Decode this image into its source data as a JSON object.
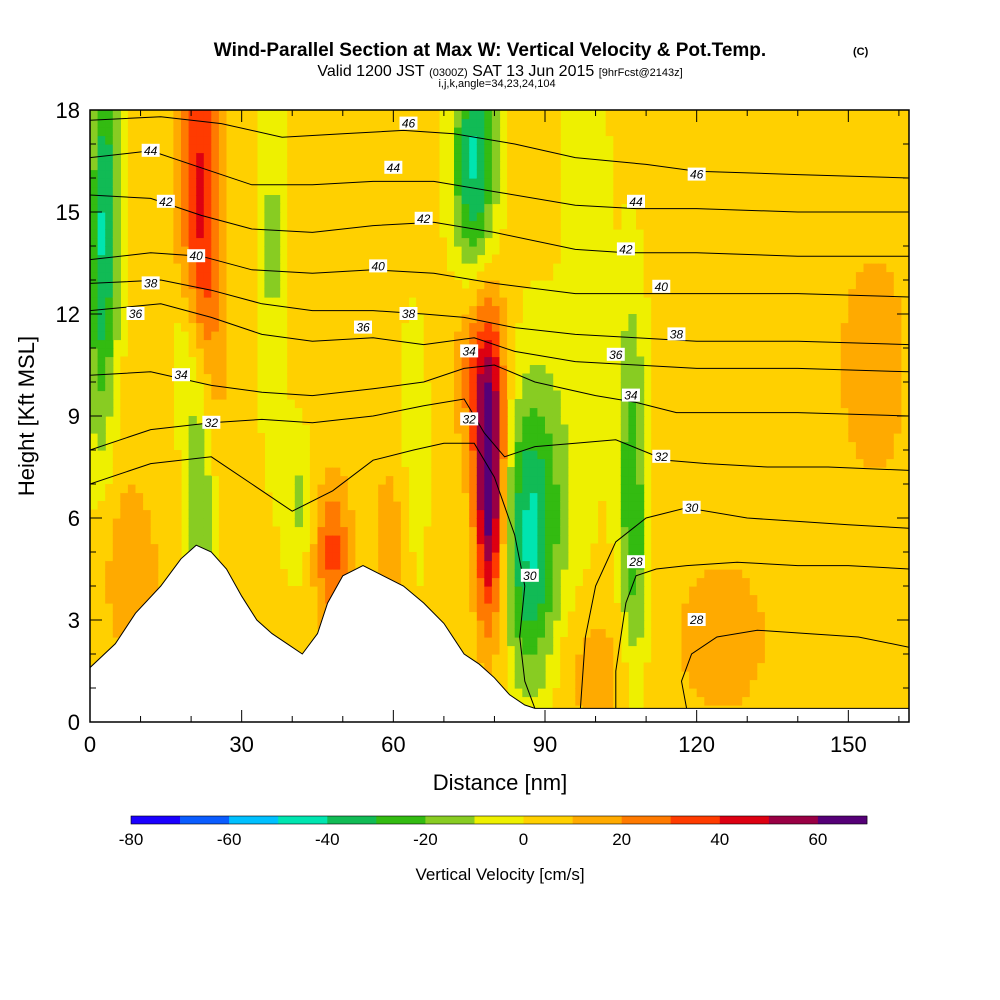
{
  "chart_data": {
    "type": "heatmap",
    "title": "Wind-Parallel Section at Max W: Vertical Velocity & Pot.Temp.",
    "title_mark": "(C)",
    "subtitle_parts": [
      "Valid 1200 JST",
      "(0300Z)",
      "SAT 13 Jun 2015",
      "[9hrFcst@2143z]"
    ],
    "subtitle2": "i,j,k,angle=34,23,24,104",
    "xlabel": "Distance [nm]",
    "ylabel": "Height [Kft MSL]",
    "xlim": [
      0,
      162
    ],
    "ylim": [
      0,
      18
    ],
    "x_ticks": [
      0,
      30,
      60,
      90,
      120,
      150
    ],
    "y_ticks": [
      0,
      3,
      6,
      9,
      12,
      15,
      18
    ],
    "colorbar": {
      "label": "Vertical Velocity [cm/s]",
      "range": [
        -80,
        70
      ],
      "ticks": [
        -80,
        -60,
        -40,
        -20,
        0,
        20,
        40,
        60
      ],
      "colors": [
        "#1a00ff",
        "#0a5cff",
        "#00c0ff",
        "#00e5b0",
        "#11bb55",
        "#33bb11",
        "#88cc22",
        "#eef000",
        "#ffd000",
        "#ffaa00",
        "#ff7a00",
        "#ff3b00",
        "#dd0011",
        "#990044",
        "#550077"
      ]
    },
    "terrain": [
      [
        0,
        1.6
      ],
      [
        5,
        2.3
      ],
      [
        9,
        3.2
      ],
      [
        14,
        4.0
      ],
      [
        18,
        4.8
      ],
      [
        21,
        5.2
      ],
      [
        24,
        5.0
      ],
      [
        27,
        4.5
      ],
      [
        30,
        3.7
      ],
      [
        33,
        3.0
      ],
      [
        36,
        2.6
      ],
      [
        39,
        2.3
      ],
      [
        42,
        2.0
      ],
      [
        45,
        2.6
      ],
      [
        47,
        3.5
      ],
      [
        50,
        4.3
      ],
      [
        54,
        4.6
      ],
      [
        58,
        4.3
      ],
      [
        62,
        4.0
      ],
      [
        66,
        3.5
      ],
      [
        70,
        2.9
      ],
      [
        74,
        2.0
      ],
      [
        77,
        1.7
      ],
      [
        80,
        1.3
      ],
      [
        83,
        0.8
      ],
      [
        86,
        0.5
      ],
      [
        88,
        0.4
      ],
      [
        162,
        0.4
      ]
    ],
    "velocity_features": [
      {
        "x": 22,
        "y": 14.5,
        "sx": 3.0,
        "sy": 5.0,
        "w": 42
      },
      {
        "x": 79,
        "y": 7.0,
        "sx": 2.0,
        "sy": 2.8,
        "w": 70
      },
      {
        "x": 77,
        "y": 10.5,
        "sx": 3.5,
        "sy": 2.0,
        "w": 25
      },
      {
        "x": 48,
        "y": 5.0,
        "sx": 2.5,
        "sy": 1.5,
        "w": 30
      },
      {
        "x": 60,
        "y": 5.5,
        "sx": 3.0,
        "sy": 2.0,
        "w": 12
      },
      {
        "x": 8,
        "y": 4.5,
        "sx": 4.0,
        "sy": 2.0,
        "w": 15
      },
      {
        "x": 155,
        "y": 10.5,
        "sx": 6.0,
        "sy": 3.0,
        "w": 12
      },
      {
        "x": 125,
        "y": 2.5,
        "sx": 8.0,
        "sy": 2.0,
        "w": 12
      },
      {
        "x": 100,
        "y": 1.5,
        "sx": 5.0,
        "sy": 1.5,
        "w": 12
      },
      {
        "x": 3,
        "y": 15.5,
        "sx": 2.0,
        "sy": 3.0,
        "w": -38
      },
      {
        "x": 22,
        "y": 7.0,
        "sx": 2.0,
        "sy": 3.5,
        "w": -32
      },
      {
        "x": 19,
        "y": 10.5,
        "sx": 2.0,
        "sy": 2.0,
        "w": -22
      },
      {
        "x": 76,
        "y": 16.5,
        "sx": 3.0,
        "sy": 2.5,
        "w": -45
      },
      {
        "x": 87,
        "y": 5.0,
        "sx": 3.5,
        "sy": 3.0,
        "w": -35
      },
      {
        "x": 90,
        "y": 7.0,
        "sx": 6.0,
        "sy": 3.0,
        "w": -15
      },
      {
        "x": 107,
        "y": 8.0,
        "sx": 2.0,
        "sy": 3.5,
        "w": -25
      },
      {
        "x": 108,
        "y": 4.0,
        "sx": 2.0,
        "sy": 2.5,
        "w": -15
      },
      {
        "x": 36,
        "y": 14.0,
        "sx": 2.0,
        "sy": 4.0,
        "w": -15
      },
      {
        "x": 64,
        "y": 7.5,
        "sx": 2.0,
        "sy": 3.0,
        "w": -12
      },
      {
        "x": 98,
        "y": 15.5,
        "sx": 3.0,
        "sy": 3.0,
        "w": -12
      },
      {
        "x": 2,
        "y": 11.0,
        "sx": 2.0,
        "sy": 3.0,
        "w": -20
      },
      {
        "x": 41,
        "y": 6.5,
        "sx": 2.0,
        "sy": 1.5,
        "w": -15
      }
    ],
    "isentropes": [
      {
        "label": "28",
        "points": [
          [
            104,
            0.4
          ],
          [
            104,
            1.5
          ],
          [
            105,
            2.5
          ],
          [
            106,
            3.5
          ],
          [
            108,
            4.3
          ],
          [
            112,
            4.5
          ],
          [
            118,
            4.6
          ],
          [
            128,
            4.7
          ],
          [
            140,
            4.6
          ],
          [
            150,
            4.6
          ],
          [
            162,
            4.5
          ]
        ]
      },
      {
        "label": "28",
        "points": [
          [
            118,
            0.4
          ],
          [
            117,
            1.2
          ],
          [
            119,
            2.0
          ],
          [
            124,
            2.5
          ],
          [
            132,
            2.7
          ],
          [
            142,
            2.6
          ],
          [
            152,
            2.5
          ],
          [
            162,
            2.2
          ]
        ]
      },
      {
        "label": "30",
        "points": [
          [
            0,
            7.0
          ],
          [
            12,
            7.6
          ],
          [
            24,
            7.8
          ],
          [
            32,
            7.0
          ],
          [
            40,
            6.2
          ],
          [
            48,
            6.8
          ],
          [
            56,
            7.7
          ],
          [
            64,
            8.0
          ],
          [
            70,
            8.2
          ],
          [
            76,
            8.2
          ],
          [
            80,
            7.2
          ],
          [
            84,
            5.5
          ],
          [
            86,
            4.0
          ],
          [
            85,
            2.5
          ],
          [
            86,
            1.2
          ],
          [
            88,
            0.4
          ]
        ]
      },
      {
        "label": "30",
        "points": [
          [
            97,
            0.4
          ],
          [
            98,
            2.5
          ],
          [
            100,
            4.0
          ],
          [
            104,
            5.3
          ],
          [
            110,
            6.0
          ],
          [
            118,
            6.3
          ],
          [
            130,
            6.0
          ],
          [
            140,
            5.9
          ],
          [
            150,
            5.8
          ],
          [
            162,
            5.7
          ]
        ]
      },
      {
        "label": "32",
        "points": [
          [
            0,
            8.0
          ],
          [
            12,
            8.6
          ],
          [
            24,
            8.8
          ],
          [
            34,
            8.9
          ],
          [
            44,
            8.8
          ],
          [
            56,
            9.0
          ],
          [
            66,
            9.3
          ],
          [
            74,
            9.5
          ],
          [
            78,
            8.5
          ],
          [
            82,
            7.8
          ],
          [
            88,
            8.1
          ],
          [
            96,
            8.2
          ],
          [
            104,
            8.3
          ],
          [
            114,
            7.7
          ],
          [
            122,
            7.6
          ],
          [
            134,
            7.5
          ],
          [
            146,
            7.5
          ],
          [
            162,
            7.4
          ]
        ]
      },
      {
        "label": "34",
        "points": [
          [
            0,
            10.2
          ],
          [
            12,
            10.3
          ],
          [
            24,
            9.9
          ],
          [
            34,
            9.7
          ],
          [
            44,
            9.6
          ],
          [
            56,
            9.8
          ],
          [
            66,
            10.0
          ],
          [
            74,
            10.4
          ],
          [
            80,
            10.5
          ],
          [
            88,
            10.0
          ],
          [
            100,
            9.6
          ],
          [
            108,
            9.4
          ],
          [
            116,
            9.1
          ],
          [
            126,
            9.1
          ],
          [
            140,
            9.1
          ],
          [
            162,
            9.0
          ]
        ]
      },
      {
        "label": "36",
        "points": [
          [
            0,
            12.1
          ],
          [
            14,
            12.3
          ],
          [
            24,
            11.9
          ],
          [
            34,
            11.4
          ],
          [
            44,
            11.2
          ],
          [
            56,
            11.3
          ],
          [
            66,
            11.1
          ],
          [
            76,
            11.3
          ],
          [
            84,
            10.9
          ],
          [
            96,
            10.6
          ],
          [
            108,
            10.5
          ],
          [
            120,
            10.4
          ],
          [
            140,
            10.4
          ],
          [
            162,
            10.3
          ]
        ]
      },
      {
        "label": "38",
        "points": [
          [
            0,
            12.9
          ],
          [
            14,
            13.0
          ],
          [
            24,
            12.7
          ],
          [
            34,
            12.3
          ],
          [
            44,
            12.1
          ],
          [
            56,
            12.1
          ],
          [
            66,
            12.0
          ],
          [
            74,
            11.9
          ],
          [
            84,
            11.6
          ],
          [
            96,
            11.4
          ],
          [
            108,
            11.3
          ],
          [
            120,
            11.2
          ],
          [
            140,
            11.2
          ],
          [
            162,
            11.1
          ]
        ]
      },
      {
        "label": "40",
        "points": [
          [
            0,
            13.6
          ],
          [
            12,
            13.8
          ],
          [
            22,
            13.7
          ],
          [
            32,
            13.3
          ],
          [
            44,
            13.2
          ],
          [
            56,
            13.3
          ],
          [
            68,
            13.2
          ],
          [
            80,
            12.9
          ],
          [
            96,
            12.6
          ],
          [
            108,
            12.6
          ],
          [
            120,
            12.6
          ],
          [
            140,
            12.6
          ],
          [
            162,
            12.5
          ]
        ]
      },
      {
        "label": "42",
        "points": [
          [
            0,
            15.5
          ],
          [
            12,
            15.4
          ],
          [
            22,
            14.9
          ],
          [
            32,
            14.5
          ],
          [
            44,
            14.4
          ],
          [
            56,
            14.6
          ],
          [
            68,
            14.7
          ],
          [
            80,
            14.4
          ],
          [
            96,
            13.9
          ],
          [
            106,
            13.8
          ],
          [
            120,
            13.8
          ],
          [
            140,
            13.7
          ],
          [
            162,
            13.7
          ]
        ]
      },
      {
        "label": "44",
        "points": [
          [
            0,
            16.6
          ],
          [
            12,
            16.8
          ],
          [
            22,
            16.3
          ],
          [
            32,
            15.8
          ],
          [
            44,
            15.8
          ],
          [
            56,
            15.9
          ],
          [
            68,
            15.9
          ],
          [
            80,
            15.6
          ],
          [
            96,
            15.2
          ],
          [
            108,
            15.1
          ],
          [
            120,
            15.1
          ],
          [
            140,
            15.0
          ],
          [
            162,
            15.0
          ]
        ]
      },
      {
        "label": "46",
        "points": [
          [
            0,
            17.7
          ],
          [
            14,
            17.8
          ],
          [
            26,
            17.6
          ],
          [
            38,
            17.2
          ],
          [
            50,
            17.3
          ],
          [
            62,
            17.4
          ],
          [
            72,
            17.3
          ],
          [
            84,
            17.0
          ],
          [
            96,
            16.6
          ],
          [
            110,
            16.4
          ],
          [
            120,
            16.2
          ],
          [
            140,
            16.1
          ],
          [
            162,
            16.0
          ]
        ]
      }
    ],
    "contour_labels": [
      {
        "text": "44",
        "x": 12,
        "y": 16.8
      },
      {
        "text": "42",
        "x": 15,
        "y": 15.3
      },
      {
        "text": "40",
        "x": 21,
        "y": 13.7
      },
      {
        "text": "38",
        "x": 12,
        "y": 12.9
      },
      {
        "text": "36",
        "x": 9,
        "y": 12.0
      },
      {
        "text": "34",
        "x": 18,
        "y": 10.2
      },
      {
        "text": "32",
        "x": 24,
        "y": 8.8
      },
      {
        "text": "46",
        "x": 63,
        "y": 17.6
      },
      {
        "text": "44",
        "x": 60,
        "y": 16.3
      },
      {
        "text": "42",
        "x": 66,
        "y": 14.8
      },
      {
        "text": "40",
        "x": 57,
        "y": 13.4
      },
      {
        "text": "38",
        "x": 63,
        "y": 12.0
      },
      {
        "text": "36",
        "x": 54,
        "y": 11.6
      },
      {
        "text": "34",
        "x": 75,
        "y": 10.9
      },
      {
        "text": "32",
        "x": 75,
        "y": 8.9
      },
      {
        "text": "30",
        "x": 87,
        "y": 4.3
      },
      {
        "text": "46",
        "x": 120,
        "y": 16.1
      },
      {
        "text": "44",
        "x": 108,
        "y": 15.3
      },
      {
        "text": "42",
        "x": 106,
        "y": 13.9
      },
      {
        "text": "40",
        "x": 113,
        "y": 12.8
      },
      {
        "text": "38",
        "x": 116,
        "y": 11.4
      },
      {
        "text": "36",
        "x": 104,
        "y": 10.8
      },
      {
        "text": "34",
        "x": 107,
        "y": 9.6
      },
      {
        "text": "32",
        "x": 113,
        "y": 7.8
      },
      {
        "text": "30",
        "x": 119,
        "y": 6.3
      },
      {
        "text": "28",
        "x": 108,
        "y": 4.7
      },
      {
        "text": "28",
        "x": 120,
        "y": 3.0
      }
    ]
  }
}
